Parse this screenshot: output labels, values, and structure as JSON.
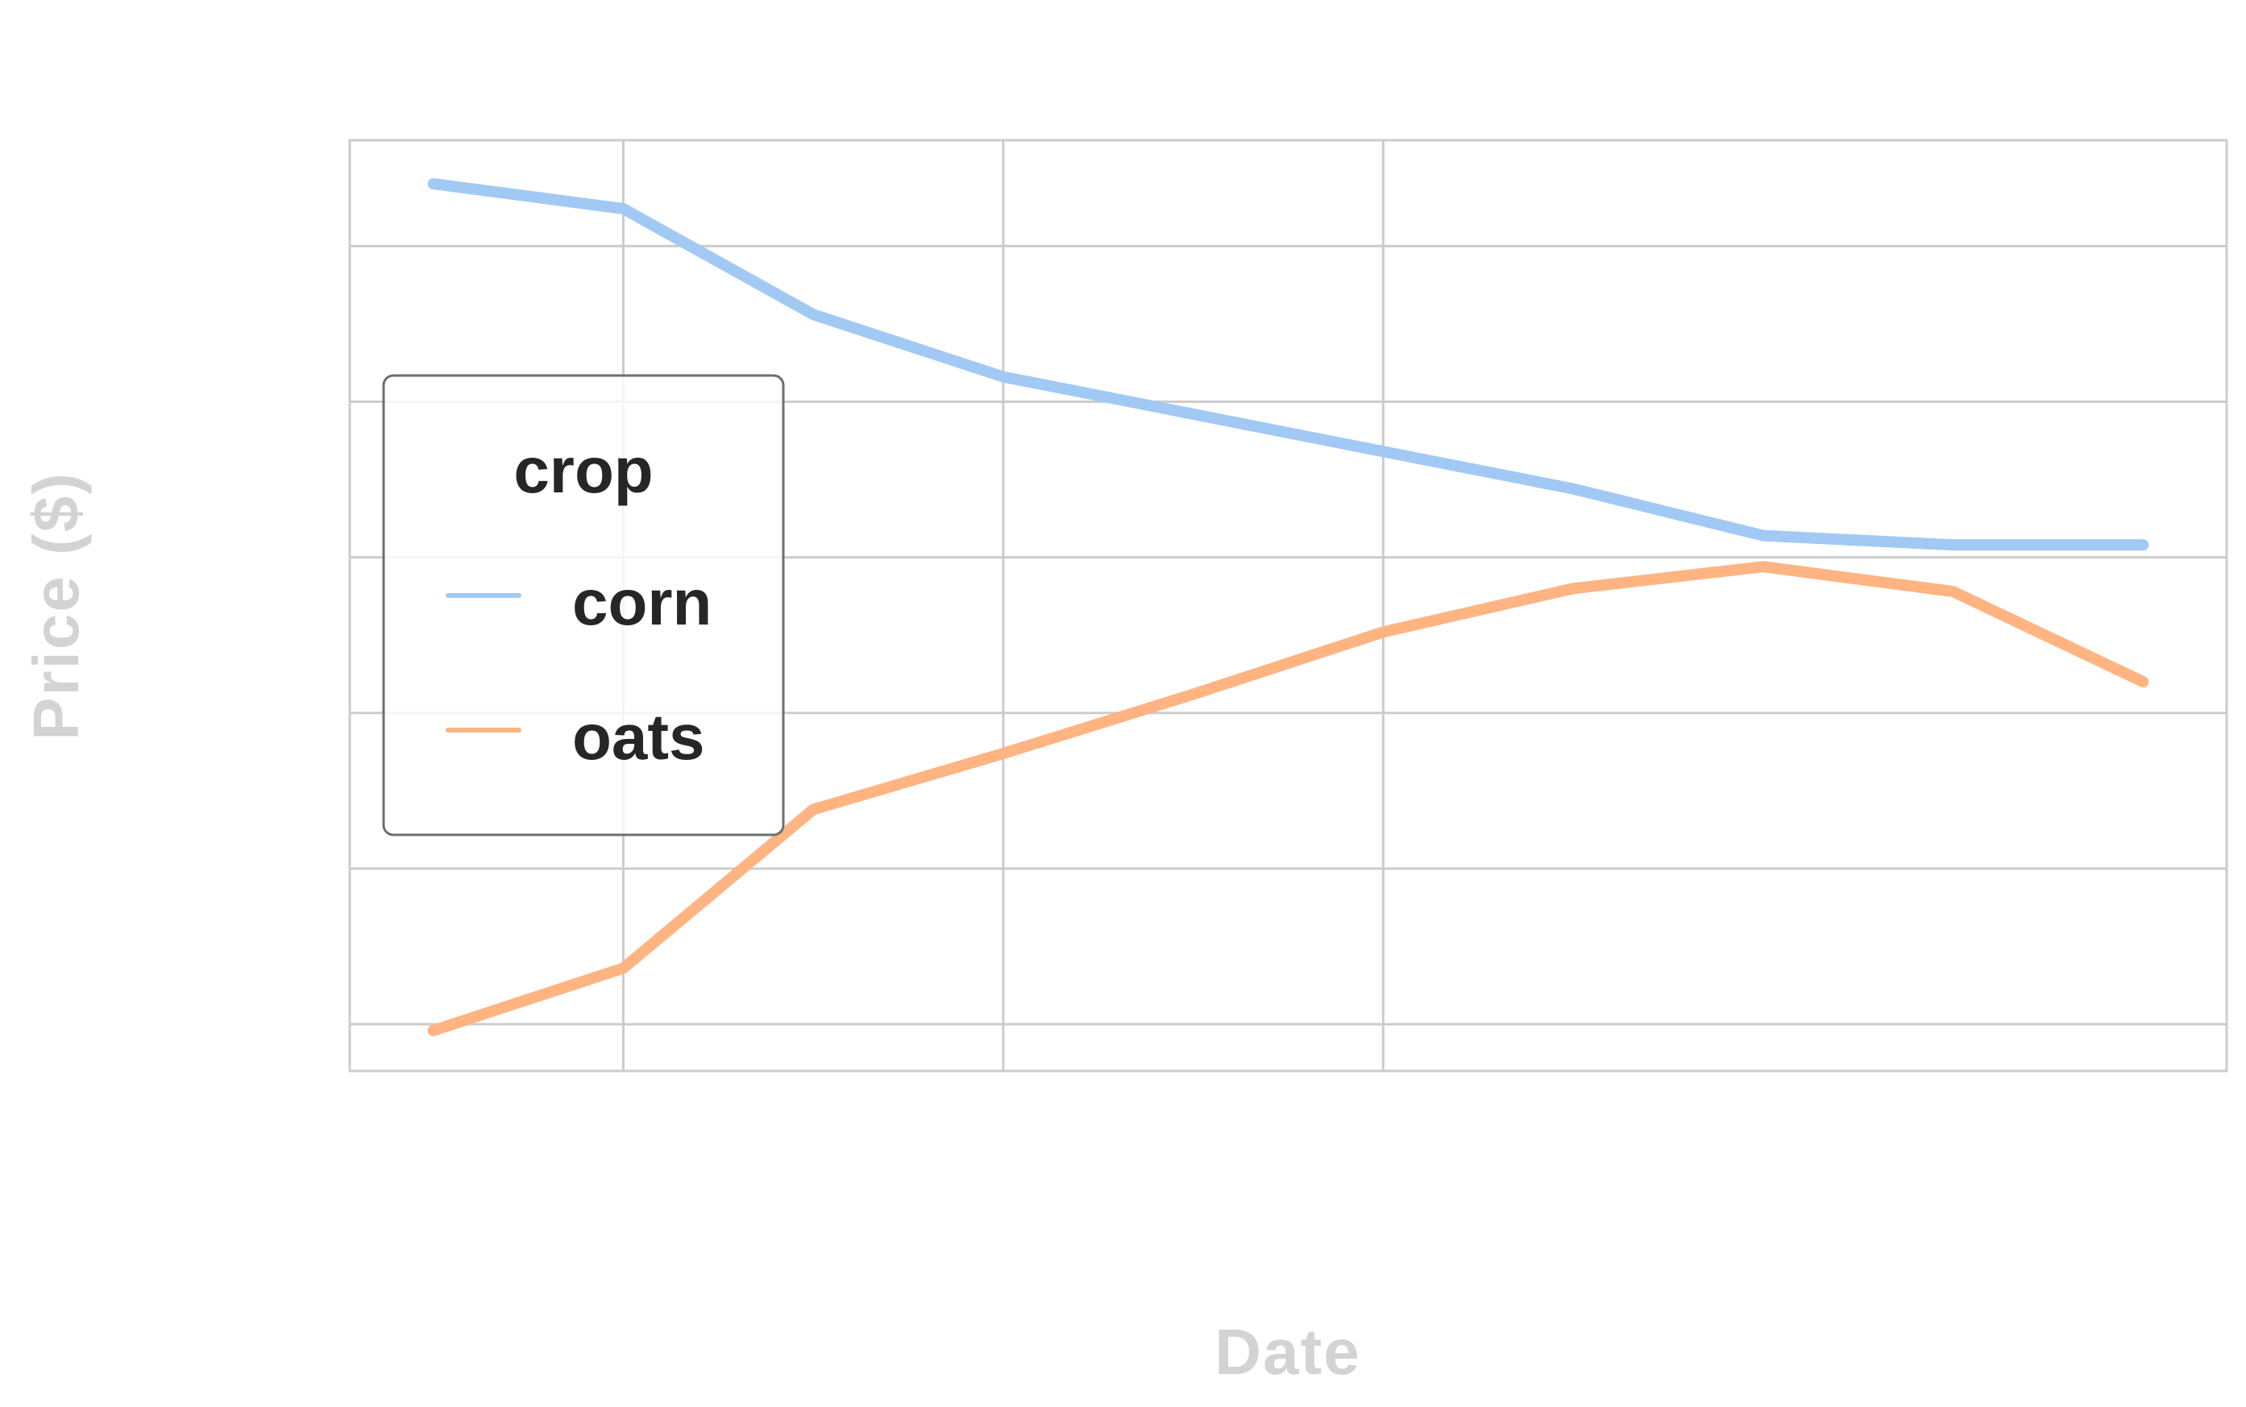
{
  "chart_data": {
    "type": "line",
    "title": "",
    "xlabel": "Date",
    "ylabel": "Price ($)",
    "x": [
      0.5,
      1,
      1.5,
      2,
      2.5,
      3,
      3.5,
      4,
      4.5,
      5
    ],
    "xlim": [
      0.28,
      5.22
    ],
    "ylim": [
      0.35,
      3.34
    ],
    "grid": true,
    "legend": {
      "title": "crop",
      "position": "left"
    },
    "series": [
      {
        "name": "corn",
        "color": "#a1c9f4",
        "values": [
          3.2,
          3.12,
          2.78,
          2.58,
          2.46,
          2.34,
          2.22,
          2.07,
          2.04,
          2.04
        ]
      },
      {
        "name": "oats",
        "color": "#ffb482",
        "values": [
          0.48,
          0.68,
          1.19,
          1.37,
          1.56,
          1.76,
          1.9,
          1.97,
          1.89,
          1.6
        ]
      }
    ]
  },
  "colors": {
    "grid": "#cccccc",
    "axis_title": "#d3d3d3",
    "legend_text": "#262626",
    "legend_frame": "#6e6e6e"
  }
}
